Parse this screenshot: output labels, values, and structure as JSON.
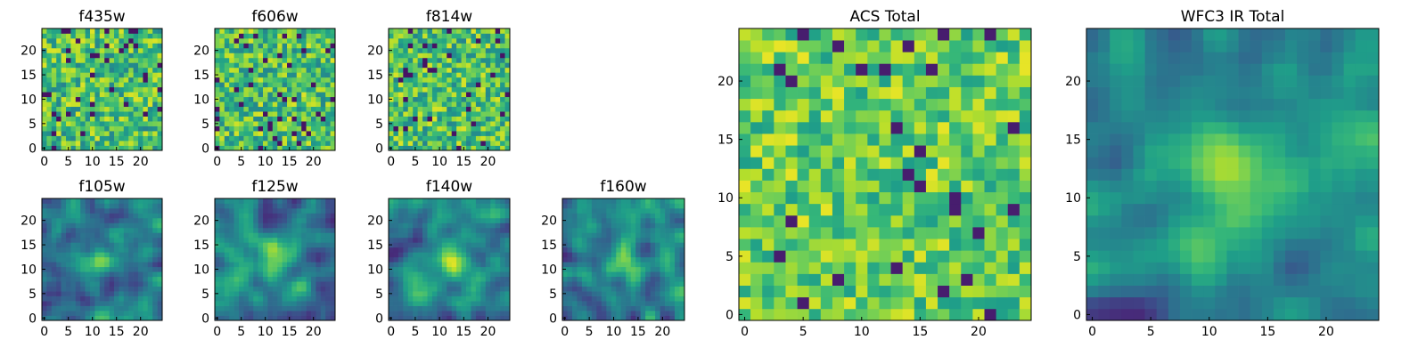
{
  "chart_data": [
    {
      "type": "heatmap",
      "title": "f435w",
      "grid": [
        25,
        25
      ],
      "colormap": "viridis",
      "xticks": [
        0,
        5,
        10,
        15,
        20
      ],
      "yticks": [
        0,
        5,
        10,
        15,
        20
      ],
      "xlim": [
        -0.5,
        24.5
      ],
      "ylim": [
        -0.5,
        24.5
      ],
      "texture": "noise",
      "seed": 11
    },
    {
      "type": "heatmap",
      "title": "f606w",
      "grid": [
        25,
        25
      ],
      "colormap": "viridis",
      "xticks": [
        0,
        5,
        10,
        15,
        20
      ],
      "yticks": [
        0,
        5,
        10,
        15,
        20
      ],
      "xlim": [
        -0.5,
        24.5
      ],
      "ylim": [
        -0.5,
        24.5
      ],
      "texture": "noise",
      "seed": 23
    },
    {
      "type": "heatmap",
      "title": "f814w",
      "grid": [
        25,
        25
      ],
      "colormap": "viridis",
      "xticks": [
        0,
        5,
        10,
        15,
        20
      ],
      "yticks": [
        0,
        5,
        10,
        15,
        20
      ],
      "xlim": [
        -0.5,
        24.5
      ],
      "ylim": [
        -0.5,
        24.5
      ],
      "texture": "noise",
      "seed": 37
    },
    {
      "type": "heatmap",
      "title": "f105w",
      "grid": [
        25,
        25
      ],
      "colormap": "viridis",
      "xticks": [
        0,
        5,
        10,
        15,
        20
      ],
      "yticks": [
        0,
        5,
        10,
        15,
        20
      ],
      "xlim": [
        -0.5,
        24.5
      ],
      "ylim": [
        -0.5,
        24.5
      ],
      "texture": "smooth",
      "seed": 41,
      "peak": [
        12,
        12
      ]
    },
    {
      "type": "heatmap",
      "title": "f125w",
      "grid": [
        25,
        25
      ],
      "colormap": "viridis",
      "xticks": [
        0,
        5,
        10,
        15,
        20
      ],
      "yticks": [
        0,
        5,
        10,
        15,
        20
      ],
      "xlim": [
        -0.5,
        24.5
      ],
      "ylim": [
        -0.5,
        24.5
      ],
      "texture": "smooth",
      "seed": 53,
      "peak": [
        12,
        12
      ]
    },
    {
      "type": "heatmap",
      "title": "f140w",
      "grid": [
        25,
        25
      ],
      "colormap": "viridis",
      "xticks": [
        0,
        5,
        10,
        15,
        20
      ],
      "yticks": [
        0,
        5,
        10,
        15,
        20
      ],
      "xlim": [
        -0.5,
        24.5
      ],
      "ylim": [
        -0.5,
        24.5
      ],
      "texture": "smooth",
      "seed": 67,
      "peak": [
        12,
        12
      ]
    },
    {
      "type": "heatmap",
      "title": "f160w",
      "grid": [
        25,
        25
      ],
      "colormap": "viridis",
      "xticks": [
        0,
        5,
        10,
        15,
        20
      ],
      "yticks": [
        0,
        5,
        10,
        15,
        20
      ],
      "xlim": [
        -0.5,
        24.5
      ],
      "ylim": [
        -0.5,
        24.5
      ],
      "texture": "smooth",
      "seed": 79,
      "peak": [
        12,
        12
      ]
    },
    {
      "type": "heatmap",
      "title": "ACS Total",
      "grid": [
        25,
        25
      ],
      "colormap": "viridis",
      "xticks": [
        0,
        5,
        10,
        15,
        20
      ],
      "yticks": [
        0,
        5,
        10,
        15,
        20
      ],
      "xlim": [
        -0.5,
        24.5
      ],
      "ylim": [
        -0.5,
        24.5
      ],
      "texture": "noise-bright",
      "seed": 83
    },
    {
      "type": "heatmap",
      "title": "WFC3 IR Total",
      "grid": [
        25,
        25
      ],
      "colormap": "viridis",
      "xticks": [
        0,
        5,
        10,
        15,
        20
      ],
      "yticks": [
        0,
        5,
        10,
        15,
        20
      ],
      "xlim": [
        -0.5,
        24.5
      ],
      "ylim": [
        -0.5,
        24.5
      ],
      "texture": "smooth",
      "seed": 97,
      "peak": [
        12,
        12
      ]
    }
  ]
}
